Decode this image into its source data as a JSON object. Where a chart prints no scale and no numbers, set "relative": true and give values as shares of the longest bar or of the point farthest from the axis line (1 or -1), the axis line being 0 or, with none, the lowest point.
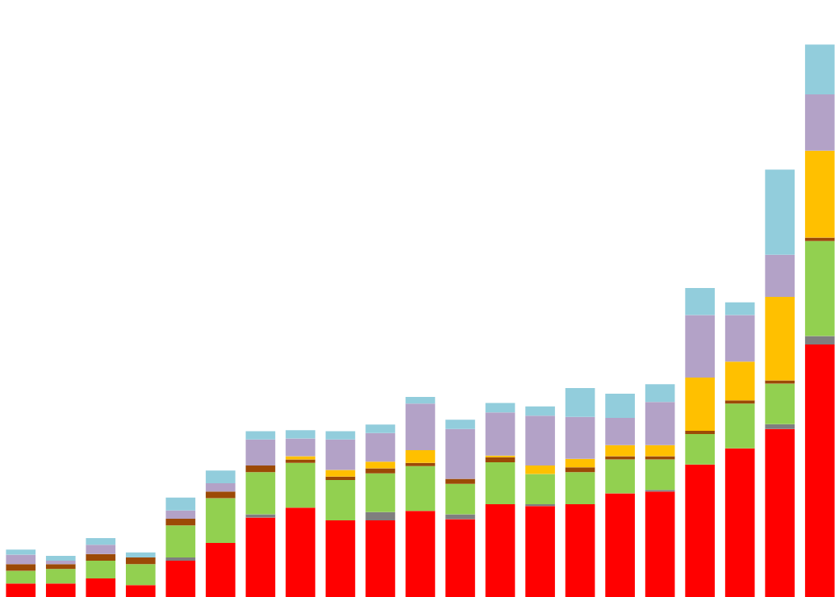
{
  "chart_data": {
    "type": "bar",
    "relative": true,
    "stacked": true,
    "categories": [
      null,
      null,
      null,
      null,
      null,
      null,
      null,
      null,
      null,
      null,
      null,
      null,
      null,
      null,
      null,
      null,
      null,
      null,
      null,
      null,
      null
    ],
    "series": [
      {
        "color": "#ff0000",
        "values": [
          0.026,
          0.026,
          0.035,
          0.023,
          0.067,
          0.099,
          0.145,
          0.163,
          0.14,
          0.14,
          0.157,
          0.142,
          0.169,
          0.166,
          0.169,
          0.189,
          0.192,
          0.241,
          0.27,
          0.305,
          0.458
        ]
      },
      {
        "color": "#7f7f7f",
        "values": [
          0,
          0,
          0,
          0,
          0.006,
          0,
          0.006,
          0,
          0,
          0.015,
          0,
          0.009,
          0,
          0.003,
          0,
          0,
          0.003,
          0,
          0,
          0.009,
          0.015
        ]
      },
      {
        "color": "#92d050",
        "values": [
          0.023,
          0.026,
          0.032,
          0.038,
          0.058,
          0.081,
          0.076,
          0.081,
          0.073,
          0.07,
          0.081,
          0.055,
          0.076,
          0.055,
          0.058,
          0.061,
          0.055,
          0.055,
          0.081,
          0.073,
          0.172
        ]
      },
      {
        "color": "#9c4a06",
        "values": [
          0.012,
          0.009,
          0.012,
          0.012,
          0.012,
          0.012,
          0.012,
          0.006,
          0.006,
          0.009,
          0.006,
          0.009,
          0.009,
          0,
          0.009,
          0.006,
          0.006,
          0.006,
          0.006,
          0.006,
          0.006
        ]
      },
      {
        "color": "#ffc000",
        "values": [
          0,
          0,
          0,
          0,
          0,
          0,
          0,
          0.006,
          0.012,
          0.012,
          0.023,
          0,
          0.003,
          0.015,
          0.015,
          0.02,
          0.02,
          0.096,
          0.07,
          0.151,
          0.157
        ]
      },
      {
        "color": "#b3a2c7",
        "values": [
          0.017,
          0.006,
          0.017,
          0,
          0.015,
          0.015,
          0.047,
          0.032,
          0.055,
          0.052,
          0.084,
          0.09,
          0.078,
          0.09,
          0.076,
          0.049,
          0.078,
          0.113,
          0.084,
          0.076,
          0.102
        ]
      },
      {
        "color": "#92cddc",
        "values": [
          0.009,
          0.009,
          0.012,
          0.009,
          0.023,
          0.023,
          0.015,
          0.015,
          0.015,
          0.015,
          0.012,
          0.017,
          0.017,
          0.017,
          0.052,
          0.044,
          0.032,
          0.049,
          0.023,
          0.154,
          0.09
        ]
      }
    ]
  }
}
